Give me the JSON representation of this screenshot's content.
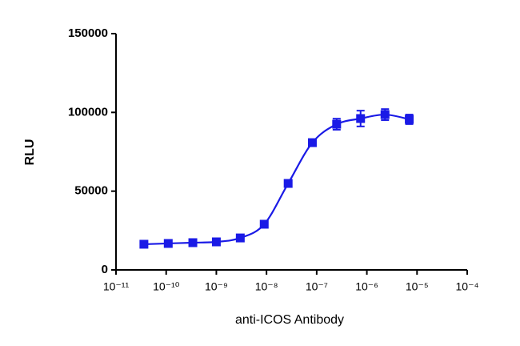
{
  "chart_data": {
    "type": "scatter",
    "xlabel": "anti-ICOS Antibody",
    "ylabel": "RLU",
    "x": [
      3.6e-11,
      1.1e-10,
      3.4e-10,
      1e-09,
      3e-09,
      9e-09,
      2.7e-08,
      8.2e-08,
      2.5e-07,
      7.5e-07,
      2.3e-06,
      7e-06
    ],
    "values": [
      16300,
      16800,
      17300,
      17800,
      20300,
      29000,
      54900,
      80800,
      92500,
      96100,
      98600,
      95600
    ],
    "errors": [
      800,
      800,
      700,
      700,
      1000,
      1200,
      1500,
      2000,
      3500,
      5000,
      3500,
      3000
    ],
    "color": "#1a1ae6",
    "xscale": "log",
    "xlim": [
      1e-11,
      0.0001
    ],
    "xticks": [
      {
        "value": 1e-11,
        "label": "10⁻¹¹"
      },
      {
        "value": 1e-10,
        "label": "10⁻¹⁰"
      },
      {
        "value": 1e-09,
        "label": "10⁻⁹"
      },
      {
        "value": 1e-08,
        "label": "10⁻⁸"
      },
      {
        "value": 1e-07,
        "label": "10⁻⁷"
      },
      {
        "value": 1e-06,
        "label": "10⁻⁶"
      },
      {
        "value": 1e-05,
        "label": "10⁻⁵"
      },
      {
        "value": 0.0001,
        "label": "10⁻⁴"
      }
    ],
    "ylim": [
      0,
      150000
    ],
    "yticks": [
      0,
      50000,
      100000,
      150000
    ]
  }
}
